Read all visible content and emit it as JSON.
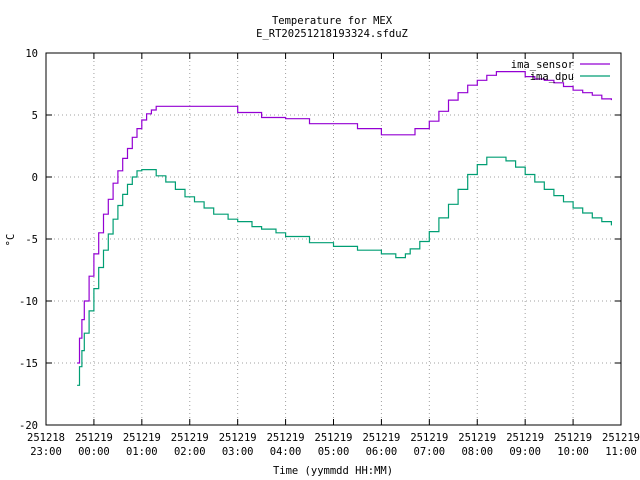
{
  "chart_data": {
    "type": "line",
    "title": "Temperature for MEX",
    "subtitle": "E_RT20251218193324.sfduZ",
    "xlabel": "Time (yymmdd HH:MM)",
    "ylabel": "°C",
    "ylim": [
      -20,
      10
    ],
    "yticks": [
      10,
      5,
      0,
      -5,
      -10,
      -15,
      -20
    ],
    "xlim_hours": [
      0,
      12
    ],
    "xticks": [
      {
        "pos": 0,
        "date": "251218",
        "time": "23:00"
      },
      {
        "pos": 1,
        "date": "251219",
        "time": "00:00"
      },
      {
        "pos": 2,
        "date": "251219",
        "time": "01:00"
      },
      {
        "pos": 3,
        "date": "251219",
        "time": "02:00"
      },
      {
        "pos": 4,
        "date": "251219",
        "time": "03:00"
      },
      {
        "pos": 5,
        "date": "251219",
        "time": "04:00"
      },
      {
        "pos": 6,
        "date": "251219",
        "time": "05:00"
      },
      {
        "pos": 7,
        "date": "251219",
        "time": "06:00"
      },
      {
        "pos": 8,
        "date": "251219",
        "time": "07:00"
      },
      {
        "pos": 9,
        "date": "251219",
        "time": "08:00"
      },
      {
        "pos": 10,
        "date": "251219",
        "time": "09:00"
      },
      {
        "pos": 11,
        "date": "251219",
        "time": "10:00"
      },
      {
        "pos": 12,
        "date": "251219",
        "time": "11:00"
      }
    ],
    "grid": true,
    "legend_position": "top-right",
    "series": [
      {
        "name": "ima_sensor",
        "color": "#9400d3",
        "x": [
          0.65,
          0.7,
          0.75,
          0.8,
          0.9,
          1.0,
          1.1,
          1.2,
          1.3,
          1.4,
          1.5,
          1.6,
          1.7,
          1.8,
          1.9,
          2.0,
          2.1,
          2.2,
          2.3,
          2.4,
          2.5,
          2.6,
          2.7,
          2.8,
          2.9,
          3.0,
          3.3,
          3.5,
          4.0,
          4.4,
          4.5,
          5.0,
          5.5,
          5.8,
          6.0,
          6.5,
          7.0,
          7.5,
          7.7,
          8.0,
          8.2,
          8.4,
          8.6,
          8.8,
          9.0,
          9.2,
          9.4,
          9.6,
          9.8,
          10.0,
          10.2,
          10.4,
          10.6,
          10.8,
          11.0,
          11.2,
          11.4,
          11.6,
          11.8
        ],
        "values": [
          -15,
          -13,
          -11.5,
          -10,
          -8,
          -6.2,
          -4.5,
          -3,
          -1.8,
          -0.5,
          0.5,
          1.5,
          2.3,
          3.2,
          3.9,
          4.6,
          5.1,
          5.4,
          5.7,
          5.7,
          5.7,
          5.7,
          5.7,
          5.7,
          5.7,
          5.7,
          5.7,
          5.7,
          5.2,
          5.2,
          4.8,
          4.7,
          4.3,
          4.3,
          4.3,
          3.9,
          3.4,
          3.4,
          3.9,
          4.5,
          5.3,
          6.2,
          6.8,
          7.4,
          7.8,
          8.2,
          8.5,
          8.5,
          8.5,
          8.1,
          7.9,
          7.8,
          7.6,
          7.3,
          7.0,
          6.8,
          6.6,
          6.3,
          6.2
        ]
      },
      {
        "name": "ima_dpu",
        "color": "#009e73",
        "x": [
          0.65,
          0.7,
          0.75,
          0.8,
          0.9,
          1.0,
          1.1,
          1.2,
          1.3,
          1.4,
          1.5,
          1.6,
          1.7,
          1.8,
          1.9,
          2.0,
          2.1,
          2.2,
          2.3,
          2.5,
          2.7,
          2.9,
          3.1,
          3.3,
          3.5,
          3.8,
          4.0,
          4.3,
          4.5,
          4.8,
          5.0,
          5.5,
          6.0,
          6.5,
          7.0,
          7.3,
          7.5,
          7.6,
          7.8,
          8.0,
          8.2,
          8.4,
          8.6,
          8.8,
          9.0,
          9.2,
          9.4,
          9.6,
          9.8,
          10.0,
          10.2,
          10.4,
          10.6,
          10.8,
          11.0,
          11.2,
          11.4,
          11.6,
          11.8
        ],
        "values": [
          -16.8,
          -15.3,
          -14,
          -12.6,
          -10.8,
          -9,
          -7.3,
          -5.9,
          -4.6,
          -3.4,
          -2.3,
          -1.4,
          -0.6,
          0,
          0.5,
          0.6,
          0.6,
          0.6,
          0.1,
          -0.4,
          -1.0,
          -1.6,
          -2.0,
          -2.5,
          -3.0,
          -3.4,
          -3.6,
          -4.0,
          -4.2,
          -4.5,
          -4.8,
          -5.3,
          -5.6,
          -5.9,
          -6.2,
          -6.5,
          -6.2,
          -5.8,
          -5.2,
          -4.4,
          -3.3,
          -2.2,
          -1.0,
          0.2,
          1.0,
          1.6,
          1.6,
          1.3,
          0.8,
          0.2,
          -0.4,
          -1.0,
          -1.5,
          -2.0,
          -2.5,
          -2.9,
          -3.3,
          -3.6,
          -3.9
        ]
      }
    ]
  }
}
